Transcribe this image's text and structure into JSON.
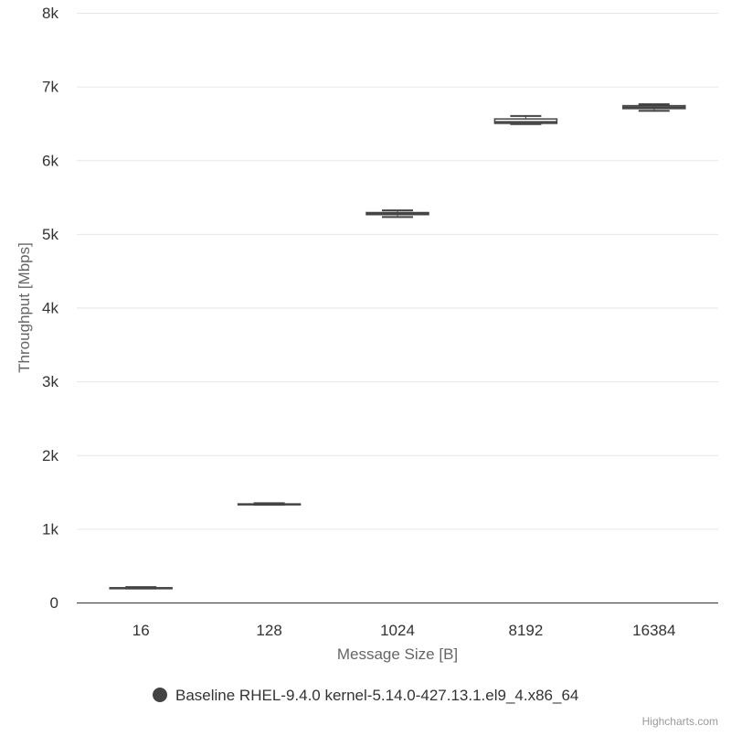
{
  "chart_data": {
    "type": "boxplot",
    "title": "",
    "xlabel": "Message Size [B]",
    "ylabel": "Throughput [Mbps]",
    "ylim": [
      0,
      8000
    ],
    "y_ticks": [
      {
        "value": 0,
        "label": "0"
      },
      {
        "value": 1000,
        "label": "1k"
      },
      {
        "value": 2000,
        "label": "2k"
      },
      {
        "value": 3000,
        "label": "3k"
      },
      {
        "value": 4000,
        "label": "4k"
      },
      {
        "value": 5000,
        "label": "5k"
      },
      {
        "value": 6000,
        "label": "6k"
      },
      {
        "value": 7000,
        "label": "7k"
      },
      {
        "value": 8000,
        "label": "8k"
      }
    ],
    "categories": [
      "16",
      "128",
      "1024",
      "8192",
      "16384"
    ],
    "series": [
      {
        "name": "Baseline RHEL-9.4.0 kernel-5.14.0-427.13.1.el9_4.x86_64",
        "color": "#444444",
        "boxes": [
          {
            "low": 190,
            "q1": 192,
            "median": 195,
            "q3": 200,
            "high": 210
          },
          {
            "low": 1325,
            "q1": 1328,
            "median": 1332,
            "q3": 1338,
            "high": 1348
          },
          {
            "low": 5230,
            "q1": 5262,
            "median": 5280,
            "q3": 5290,
            "high": 5320
          },
          {
            "low": 6490,
            "q1": 6500,
            "median": 6520,
            "q3": 6560,
            "high": 6600
          },
          {
            "low": 6670,
            "q1": 6700,
            "median": 6720,
            "q3": 6740,
            "high": 6760
          }
        ]
      }
    ],
    "legend_position": "bottom-center",
    "credits": "Highcharts.com"
  }
}
